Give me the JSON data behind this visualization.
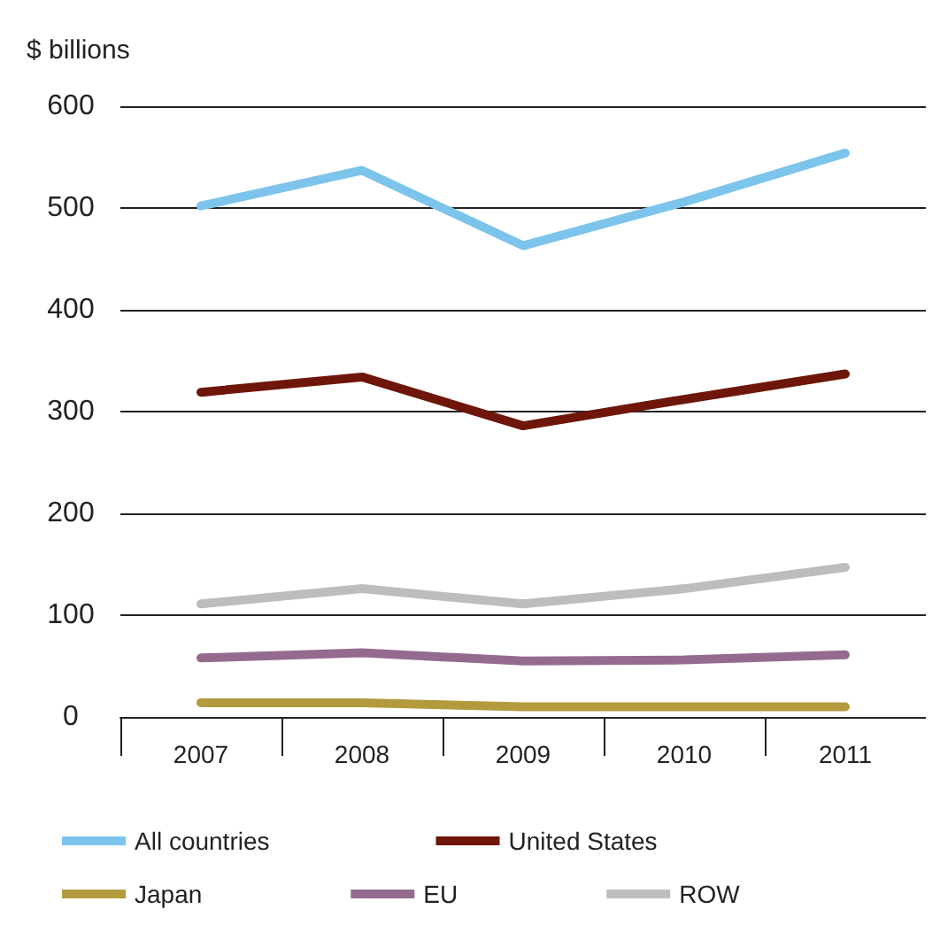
{
  "chart_data": {
    "type": "line",
    "ylabel": "$ billions",
    "categories": [
      "2007",
      "2008",
      "2009",
      "2010",
      "2011"
    ],
    "series": [
      {
        "name": "All countries",
        "color": "#7cc4ec",
        "values": [
          502,
          537,
          463,
          506,
          554
        ]
      },
      {
        "name": "United States",
        "color": "#6e1609",
        "values": [
          319,
          334,
          286,
          312,
          337
        ]
      },
      {
        "name": "Japan",
        "color": "#b39a3c",
        "values": [
          14,
          14,
          10,
          10,
          10
        ]
      },
      {
        "name": "EU",
        "color": "#946b8e",
        "values": [
          58,
          63,
          55,
          56,
          61
        ]
      },
      {
        "name": "ROW",
        "color": "#bdbdbd",
        "values": [
          111,
          126,
          111,
          126,
          147
        ]
      }
    ],
    "ylim": [
      0,
      600
    ],
    "yticks": [
      0,
      100,
      200,
      300,
      400,
      500,
      600
    ],
    "grid": "y",
    "legend": "bottom",
    "marker": "none",
    "line_style": "solid"
  }
}
